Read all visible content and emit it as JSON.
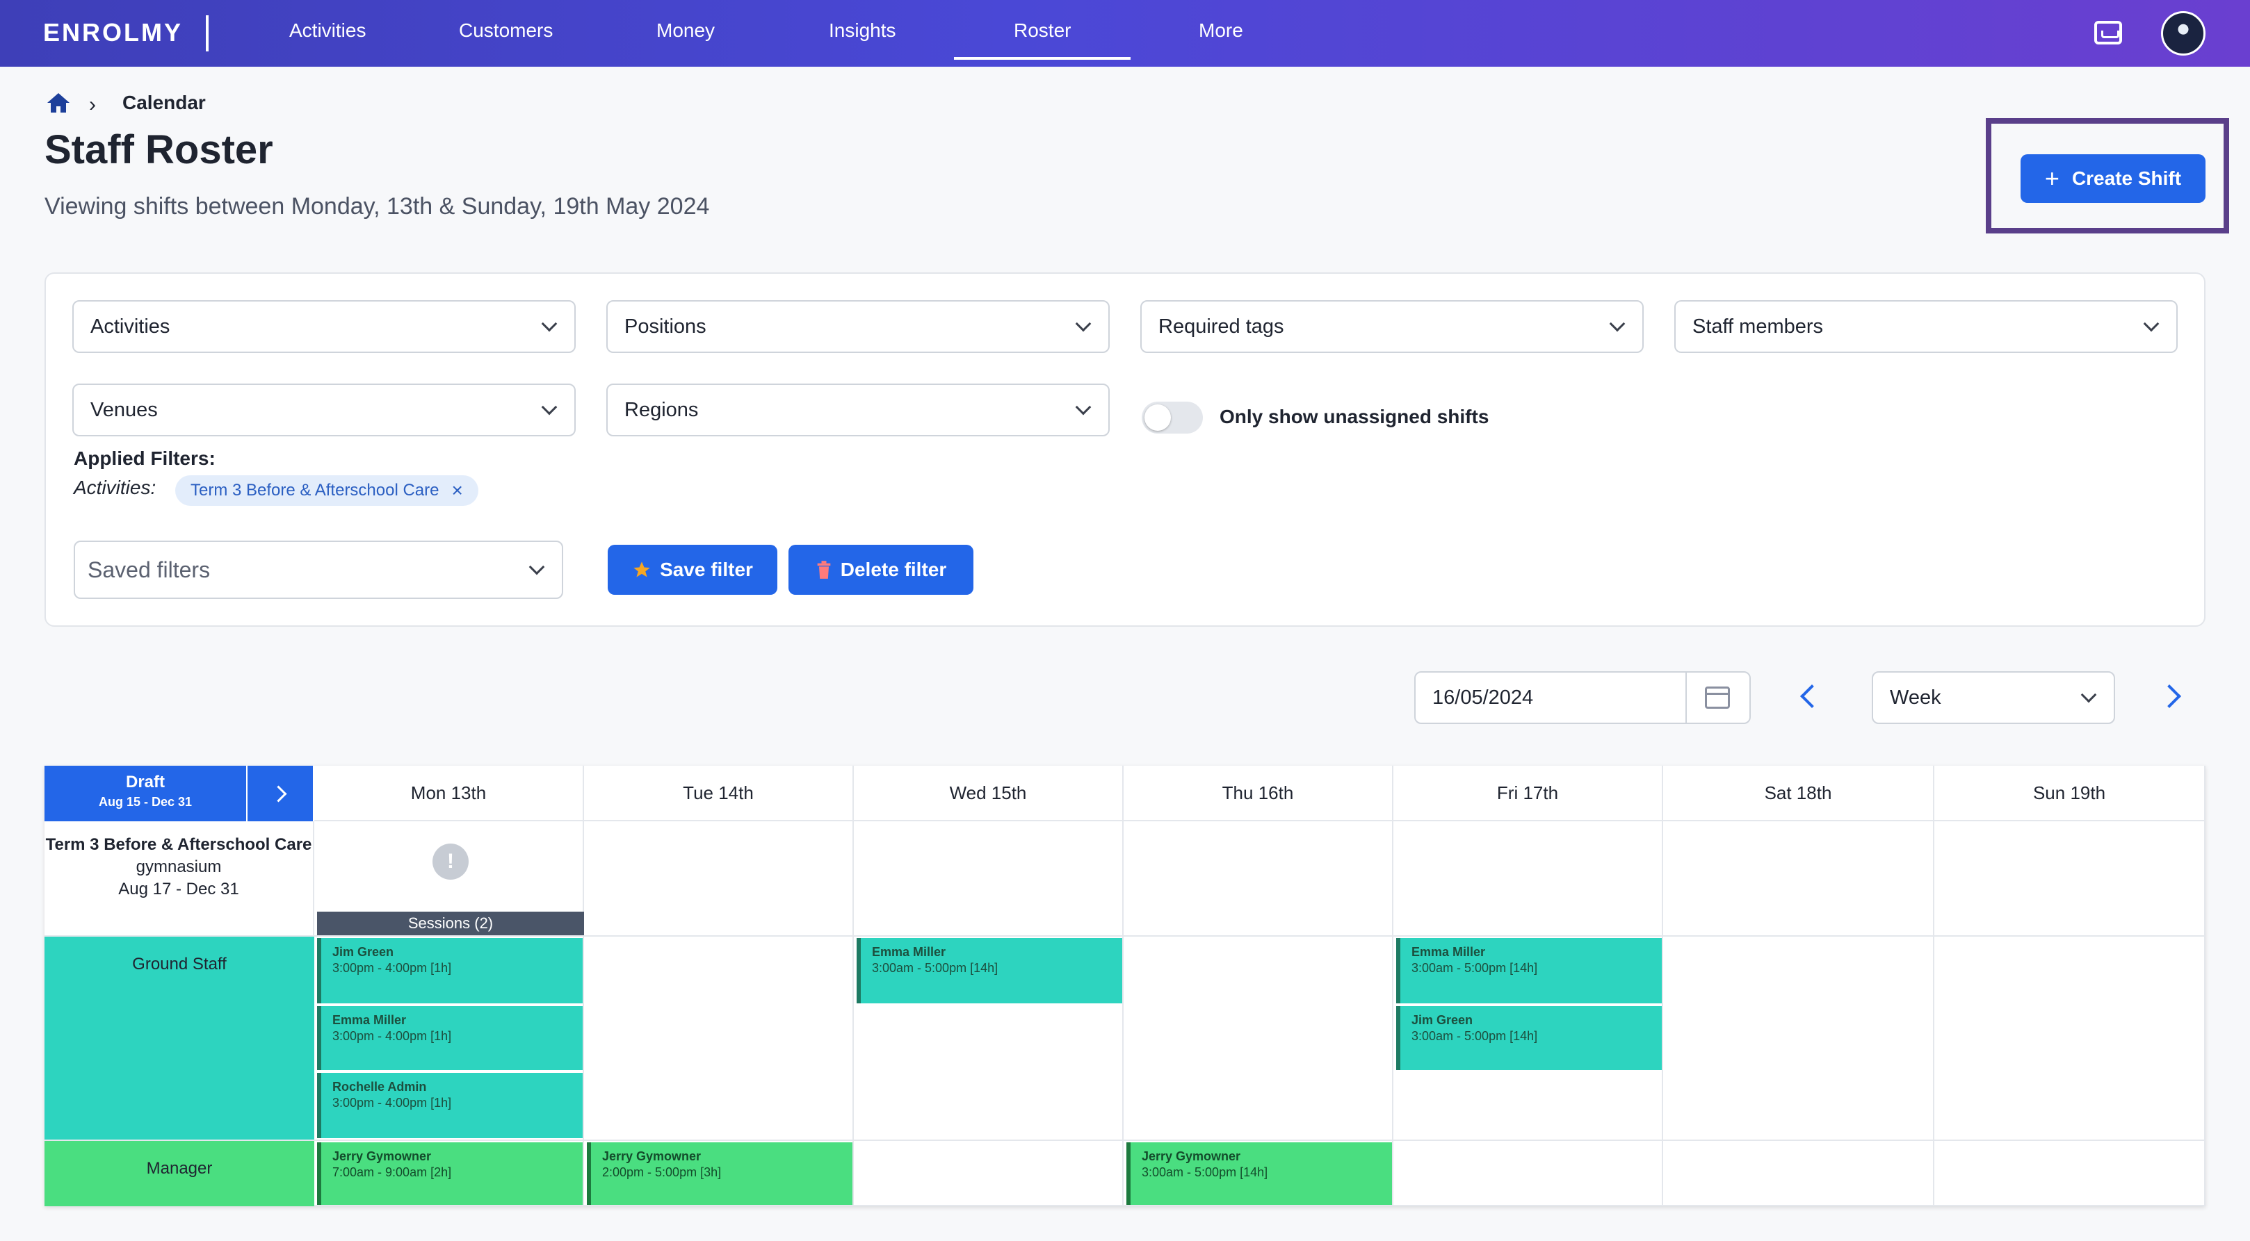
{
  "nav": {
    "logo": "ENROLMY",
    "items": [
      "Activities",
      "Customers",
      "Money",
      "Insights",
      "Roster",
      "More"
    ],
    "active": "Roster"
  },
  "breadcrumb": {
    "current": "Calendar"
  },
  "header": {
    "title": "Staff Roster",
    "subtitle": "Viewing shifts between Monday, 13th & Sunday, 19th May 2024",
    "create_label": "Create Shift"
  },
  "filters": {
    "activities": "Activities",
    "positions": "Positions",
    "required_tags": "Required tags",
    "staff_members": "Staff members",
    "venues": "Venues",
    "regions": "Regions",
    "unassigned_label": "Only show unassigned shifts",
    "applied_title": "Applied Filters:",
    "applied_key": "Activities:",
    "applied_chip": "Term 3 Before & Afterschool Care",
    "saved_placeholder": "Saved filters",
    "save_label": "Save filter",
    "delete_label": "Delete filter"
  },
  "controls": {
    "date": "16/05/2024",
    "view": "Week"
  },
  "calendar": {
    "draft_title": "Draft",
    "draft_range": "Aug 15 - Dec 31",
    "days": [
      "Mon 13th",
      "Tue 14th",
      "Wed 15th",
      "Thu 16th",
      "Fri 17th",
      "Sat 18th",
      "Sun 19th"
    ],
    "activity": {
      "name": "Term 3 Before & Afterschool Care",
      "venue": "gymnasium",
      "range": "Aug 17 - Dec 31",
      "sessions": "Sessions (2)"
    },
    "rows": {
      "ground": "Ground Staff",
      "manager": "Manager"
    },
    "shifts": {
      "g_mon_1": {
        "name": "Jim Green",
        "time": "3:00pm - 4:00pm [1h]"
      },
      "g_mon_2": {
        "name": "Emma Miller",
        "time": "3:00pm - 4:00pm [1h]"
      },
      "g_mon_3": {
        "name": "Rochelle Admin",
        "time": "3:00pm - 4:00pm [1h]"
      },
      "g_wed_1": {
        "name": "Emma Miller",
        "time": "3:00am - 5:00pm [14h]"
      },
      "g_fri_1": {
        "name": "Emma Miller",
        "time": "3:00am - 5:00pm [14h]"
      },
      "g_fri_2": {
        "name": "Jim Green",
        "time": "3:00am - 5:00pm [14h]"
      },
      "m_mon": {
        "name": "Jerry Gymowner",
        "time": "7:00am - 9:00am [2h]"
      },
      "m_tue": {
        "name": "Jerry Gymowner",
        "time": "2:00pm - 5:00pm [3h]"
      },
      "m_thu": {
        "name": "Jerry Gymowner",
        "time": "3:00am - 5:00pm [14h]"
      }
    }
  }
}
